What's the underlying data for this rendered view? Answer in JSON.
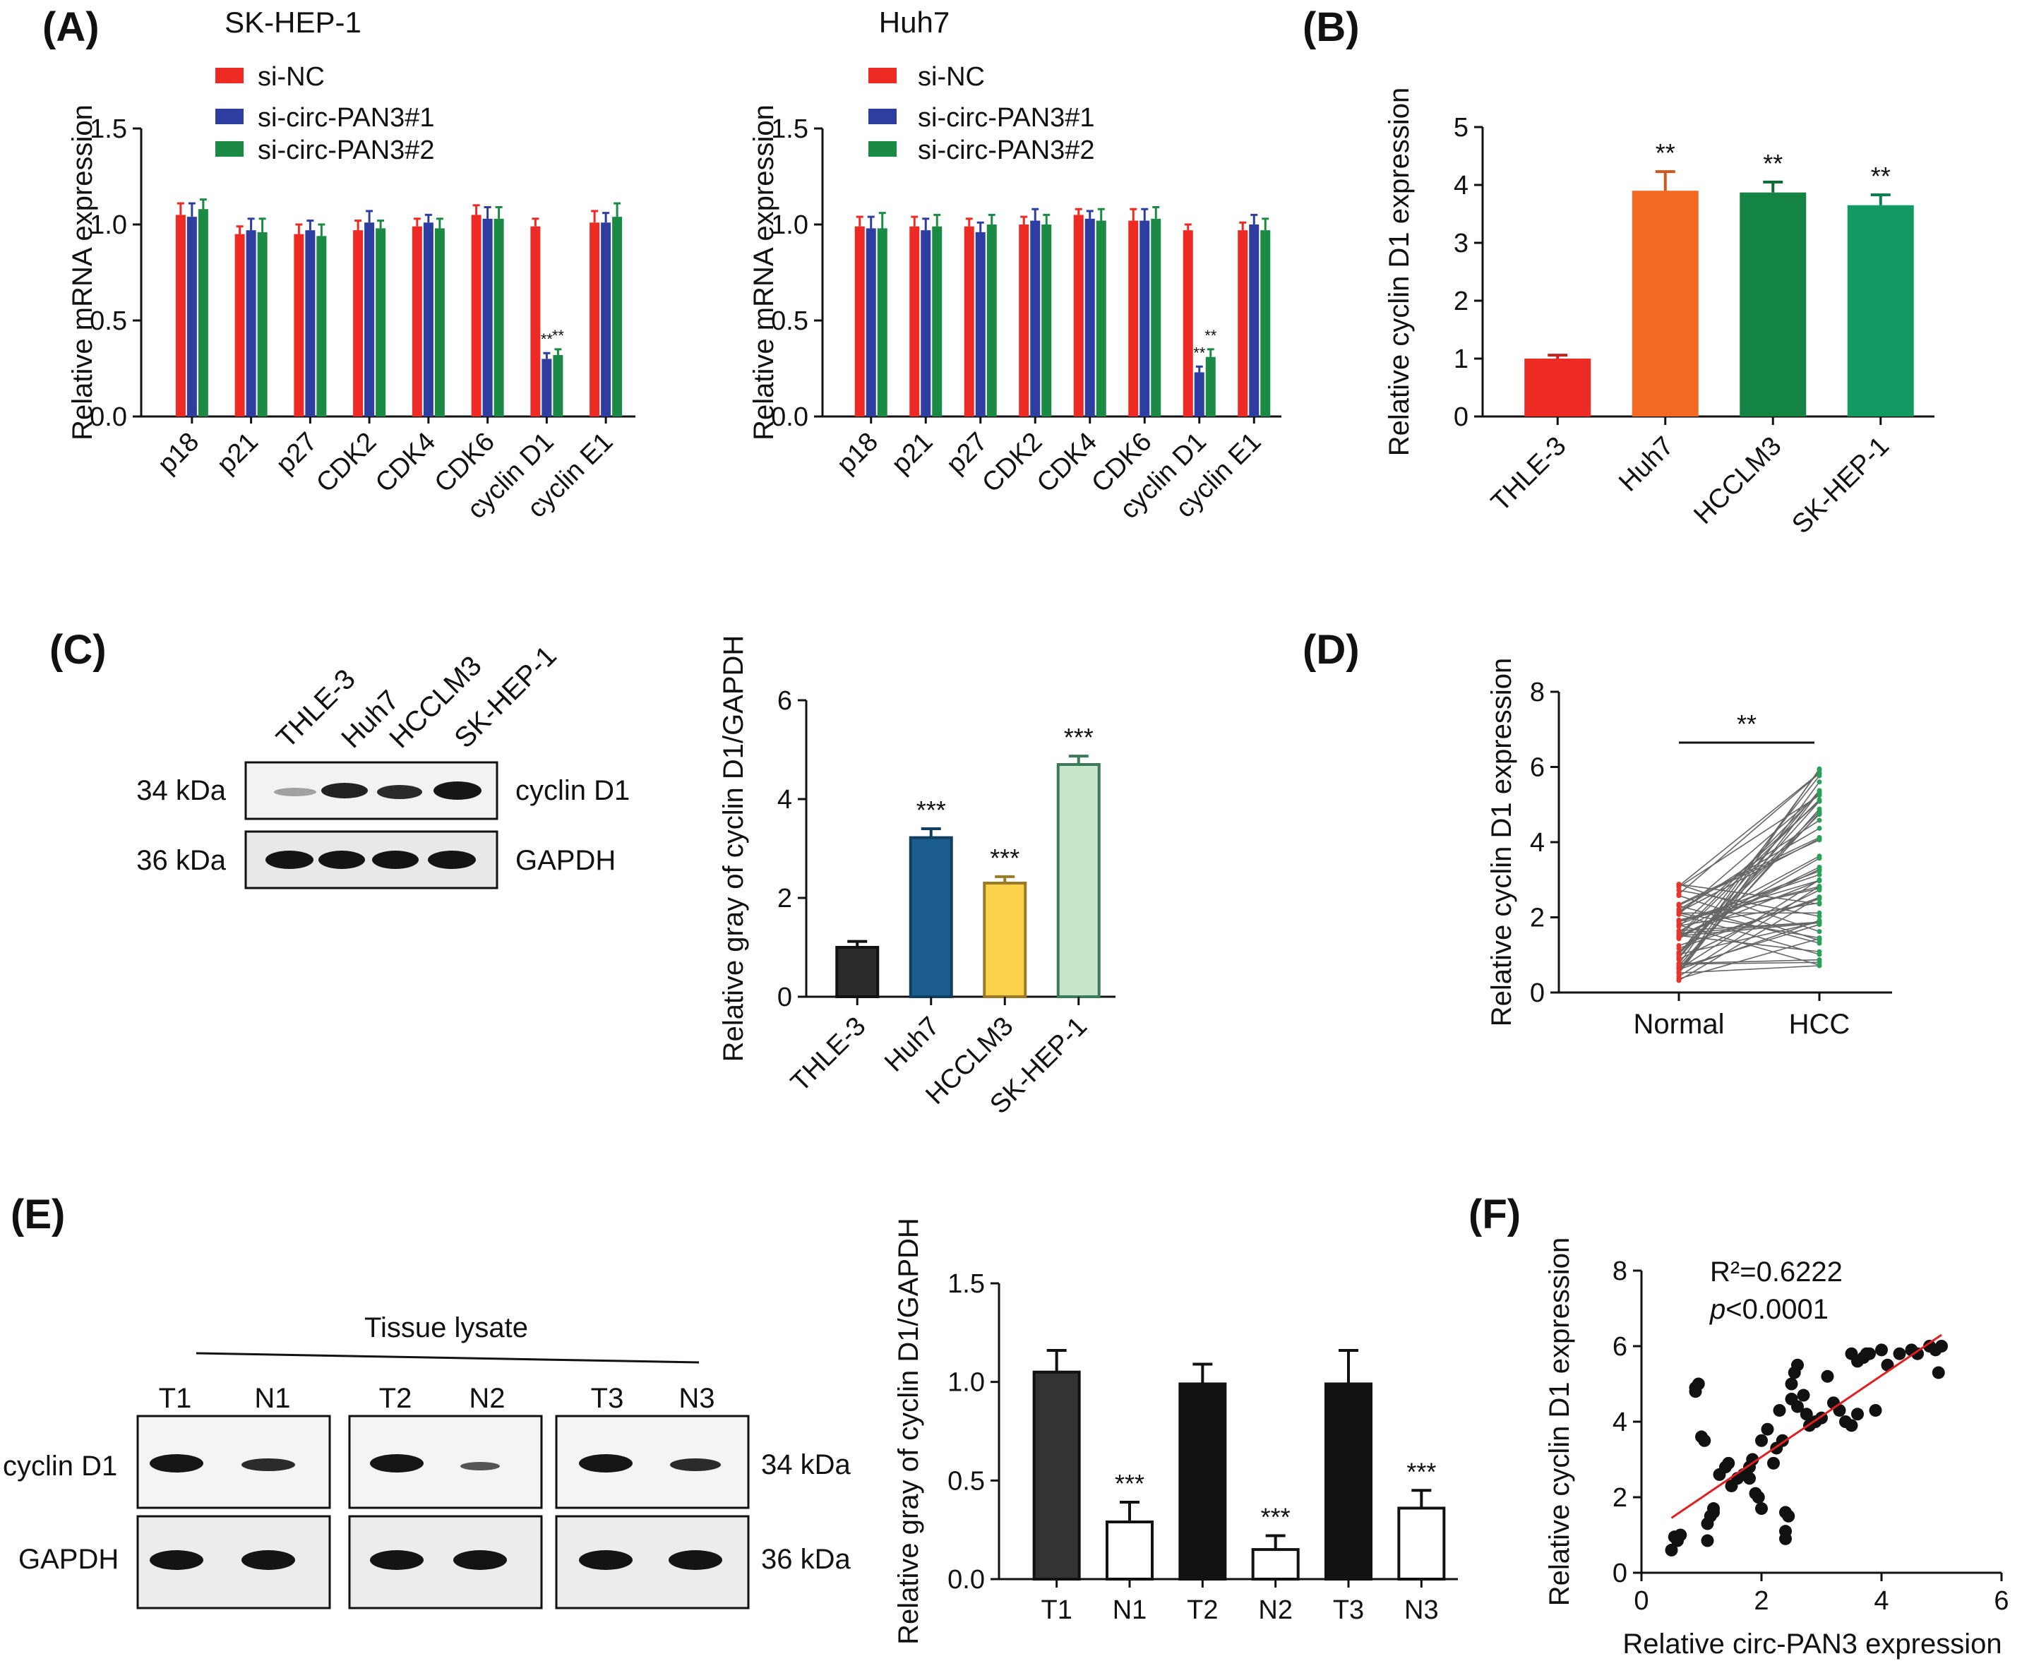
{
  "panel_labels": [
    "(A)",
    "(B)",
    "(C)",
    "(D)",
    "(E)",
    "(F)"
  ],
  "colors": {
    "si_nc": "#ee2a24",
    "si1": "#2e3da0",
    "si2": "#1a8a45",
    "thle_b": "#ee2a24",
    "huh7_b": "#f26a21",
    "hcclm3_b": "#138443",
    "skhep_b": "#129a62",
    "thle_c": "#2b2b2b",
    "huh7_c": "#1b5d8e",
    "hcclm3_c": "#fad24a",
    "skhep_c": "#c8e6cb",
    "line": "#888888",
    "fit": "#e02020"
  },
  "blot_c": {
    "cell_lines": [
      "THLE-3",
      "Huh7",
      "HCCLM3",
      "SK-HEP-1"
    ],
    "rows": [
      {
        "size": "34 kDa",
        "protein": "cyclin D1"
      },
      {
        "size": "36 kDa",
        "protein": "GAPDH"
      }
    ]
  },
  "blot_e": {
    "header": "Tissue lysate",
    "lanes": [
      "T1",
      "N1",
      "T2",
      "N2",
      "T3",
      "N3"
    ],
    "rows": [
      {
        "protein": "cyclin D1",
        "size": "34 kDa"
      },
      {
        "protein": "GAPDH",
        "size": "36 kDa"
      }
    ]
  },
  "chart_data": [
    {
      "panel": "A-left",
      "type": "bar",
      "title": "SK-HEP-1",
      "ylabel": "Relative mRNA expression",
      "ylim": [
        0,
        1.5
      ],
      "yticks": [
        "0.0",
        "0.5",
        "1.0",
        "1.5"
      ],
      "categories": [
        "p18",
        "p21",
        "p27",
        "CDK2",
        "CDK4",
        "CDK6",
        "cyclin D1",
        "cyclin E1"
      ],
      "series": [
        {
          "name": "si-NC",
          "values": [
            1.05,
            0.95,
            0.95,
            0.97,
            0.99,
            1.05,
            0.99,
            1.01
          ],
          "errors": [
            0.06,
            0.04,
            0.05,
            0.05,
            0.04,
            0.05,
            0.04,
            0.06
          ]
        },
        {
          "name": "si-circ-PAN3#1",
          "values": [
            1.04,
            0.97,
            0.97,
            1.01,
            1.01,
            1.03,
            0.3,
            1.01
          ],
          "errors": [
            0.07,
            0.06,
            0.05,
            0.06,
            0.04,
            0.06,
            0.03,
            0.05
          ]
        },
        {
          "name": "si-circ-PAN3#2",
          "values": [
            1.08,
            0.96,
            0.94,
            0.98,
            0.98,
            1.03,
            0.32,
            1.04
          ],
          "errors": [
            0.05,
            0.07,
            0.06,
            0.04,
            0.05,
            0.06,
            0.03,
            0.07
          ]
        }
      ],
      "annotations": [
        {
          "category": "cyclin D1",
          "series": "si-circ-PAN3#1",
          "text": "**"
        },
        {
          "category": "cyclin D1",
          "series": "si-circ-PAN3#2",
          "text": "**"
        }
      ]
    },
    {
      "panel": "A-right",
      "type": "bar",
      "title": "Huh7",
      "ylabel": "Relative mRNA expression",
      "ylim": [
        0,
        1.5
      ],
      "yticks": [
        "0.0",
        "0.5",
        "1.0",
        "1.5"
      ],
      "categories": [
        "p18",
        "p21",
        "p27",
        "CDK2",
        "CDK4",
        "CDK6",
        "cyclin D1",
        "cyclin E1"
      ],
      "series": [
        {
          "name": "si-NC",
          "values": [
            0.99,
            0.99,
            0.99,
            1.0,
            1.05,
            1.02,
            0.97,
            0.97
          ],
          "errors": [
            0.05,
            0.05,
            0.04,
            0.04,
            0.03,
            0.06,
            0.03,
            0.04
          ]
        },
        {
          "name": "si-circ-PAN3#1",
          "values": [
            0.98,
            0.97,
            0.96,
            1.02,
            1.03,
            1.02,
            0.23,
            1.0
          ],
          "errors": [
            0.06,
            0.06,
            0.05,
            0.06,
            0.04,
            0.06,
            0.03,
            0.05
          ]
        },
        {
          "name": "si-circ-PAN3#2",
          "values": [
            0.98,
            0.99,
            1.0,
            1.0,
            1.02,
            1.03,
            0.31,
            0.97
          ],
          "errors": [
            0.08,
            0.06,
            0.05,
            0.05,
            0.06,
            0.06,
            0.04,
            0.06
          ]
        }
      ],
      "annotations": [
        {
          "category": "cyclin D1",
          "series": "si-circ-PAN3#1",
          "text": "**"
        },
        {
          "category": "cyclin D1",
          "series": "si-circ-PAN3#2",
          "text": "**"
        }
      ]
    },
    {
      "panel": "B",
      "type": "bar",
      "title": "",
      "ylabel": "Relative cyclin D1 expression",
      "ylim": [
        0,
        5
      ],
      "yticks": [
        "0",
        "1",
        "2",
        "3",
        "4",
        "5"
      ],
      "categories": [
        "THLE-3",
        "Huh7",
        "HCCLM3",
        "SK-HEP-1"
      ],
      "values": [
        1.0,
        3.9,
        3.87,
        3.65
      ],
      "errors": [
        0.06,
        0.33,
        0.18,
        0.18
      ],
      "annotations": [
        "",
        "**",
        "**",
        "**"
      ]
    },
    {
      "panel": "C",
      "type": "bar",
      "title": "",
      "ylabel": "Relative gray of cyclin D1/GAPDH",
      "ylim": [
        0,
        6
      ],
      "yticks": [
        "0",
        "2",
        "4",
        "6"
      ],
      "categories": [
        "THLE-3",
        "Huh7",
        "HCCLM3",
        "SK-HEP-1"
      ],
      "values": [
        1.0,
        3.22,
        2.3,
        4.7
      ],
      "errors": [
        0.12,
        0.18,
        0.13,
        0.17
      ],
      "annotations": [
        "",
        "***",
        "***",
        "***"
      ]
    },
    {
      "panel": "D",
      "type": "line",
      "title": "",
      "ylabel": "Relative cyclin D1 expression",
      "ylim": [
        0,
        8
      ],
      "yticks": [
        "0",
        "2",
        "4",
        "6",
        "8"
      ],
      "categories": [
        "Normal",
        "HCC"
      ],
      "n_pairs": 60,
      "normal_range": [
        0.3,
        3.0
      ],
      "hcc_range": [
        0.6,
        6.0
      ],
      "significance": "**"
    },
    {
      "panel": "E",
      "type": "bar",
      "title": "",
      "ylabel": "Relative gray of cyclin D1/GAPDH",
      "ylim": [
        0,
        1.5
      ],
      "yticks": [
        "0.0",
        "0.5",
        "1.0",
        "1.5"
      ],
      "categories": [
        "T1",
        "N1",
        "T2",
        "N2",
        "T3",
        "N3"
      ],
      "values": [
        1.05,
        0.29,
        0.99,
        0.15,
        0.99,
        0.36
      ],
      "errors": [
        0.11,
        0.1,
        0.1,
        0.07,
        0.17,
        0.09
      ],
      "annotations": [
        "",
        "***",
        "",
        "***",
        "",
        "***"
      ]
    },
    {
      "panel": "F",
      "type": "scatter",
      "title": "",
      "xlabel": "Relative circ-PAN3 expression",
      "ylabel": "Relative cyclin D1 expression",
      "xlim": [
        0,
        6
      ],
      "ylim": [
        0,
        8
      ],
      "xticks": [
        "0",
        "2",
        "4",
        "6"
      ],
      "yticks": [
        "0",
        "2",
        "4",
        "6",
        "8"
      ],
      "stat_r2": "R²=0.6222",
      "stat_p_italic": "p",
      "stat_p_value": "<0.0001",
      "fit": {
        "x": [
          0.5,
          5.0
        ],
        "y": [
          1.45,
          6.3
        ]
      },
      "points": [
        [
          0.5,
          0.6
        ],
        [
          0.6,
          0.9
        ],
        [
          0.55,
          0.95
        ],
        [
          0.65,
          1.0
        ],
        [
          0.6,
          0.85
        ],
        [
          0.9,
          4.9
        ],
        [
          0.95,
          5.0
        ],
        [
          0.9,
          4.8
        ],
        [
          1.0,
          3.6
        ],
        [
          1.05,
          3.5
        ],
        [
          1.1,
          1.3
        ],
        [
          1.1,
          0.85
        ],
        [
          1.15,
          1.5
        ],
        [
          1.2,
          1.6
        ],
        [
          1.2,
          1.7
        ],
        [
          1.3,
          2.6
        ],
        [
          1.4,
          2.8
        ],
        [
          1.45,
          2.9
        ],
        [
          1.5,
          2.3
        ],
        [
          1.6,
          2.5
        ],
        [
          1.7,
          2.6
        ],
        [
          1.8,
          2.5
        ],
        [
          1.85,
          3.0
        ],
        [
          1.8,
          2.8
        ],
        [
          1.9,
          2.1
        ],
        [
          1.95,
          2.0
        ],
        [
          2.0,
          1.7
        ],
        [
          2.0,
          3.5
        ],
        [
          2.1,
          3.8
        ],
        [
          2.2,
          2.9
        ],
        [
          2.25,
          3.3
        ],
        [
          2.3,
          4.3
        ],
        [
          2.35,
          3.5
        ],
        [
          2.4,
          1.6
        ],
        [
          2.4,
          1.1
        ],
        [
          2.4,
          0.9
        ],
        [
          2.45,
          1.5
        ],
        [
          2.5,
          5.0
        ],
        [
          2.55,
          5.3
        ],
        [
          2.6,
          5.5
        ],
        [
          2.5,
          4.6
        ],
        [
          2.6,
          4.4
        ],
        [
          2.7,
          4.7
        ],
        [
          2.75,
          4.2
        ],
        [
          2.8,
          3.9
        ],
        [
          2.9,
          4.0
        ],
        [
          3.0,
          4.1
        ],
        [
          3.1,
          5.2
        ],
        [
          3.2,
          4.5
        ],
        [
          3.3,
          4.3
        ],
        [
          3.4,
          4.0
        ],
        [
          3.5,
          5.8
        ],
        [
          3.6,
          5.6
        ],
        [
          3.7,
          5.7
        ],
        [
          3.75,
          5.8
        ],
        [
          3.6,
          4.2
        ],
        [
          3.5,
          3.9
        ],
        [
          3.8,
          5.8
        ],
        [
          3.9,
          4.3
        ],
        [
          4.0,
          5.9
        ],
        [
          4.1,
          5.5
        ],
        [
          4.3,
          5.8
        ],
        [
          4.5,
          5.9
        ],
        [
          4.6,
          5.8
        ],
        [
          4.8,
          6.0
        ],
        [
          5.0,
          6.0
        ],
        [
          4.9,
          5.9
        ],
        [
          4.95,
          5.3
        ]
      ]
    }
  ]
}
